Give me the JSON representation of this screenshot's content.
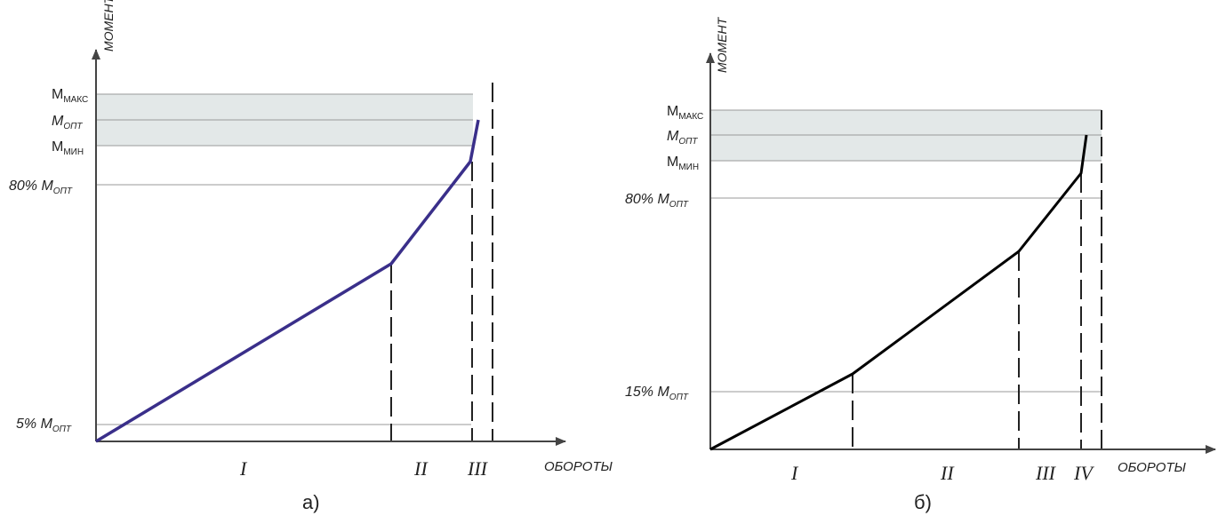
{
  "diagram_a": {
    "y_axis_label": "МОМЕНТ",
    "x_axis_label": "ОБОРОТЫ",
    "caption": "а)",
    "y_labels": {
      "mmax_main": "M",
      "mmax_sub": "МАКС",
      "mopt_main": "M",
      "mopt_sub": "ОПТ",
      "mmin_main": "M",
      "mmin_sub": "МИН",
      "p80_main": "80% M",
      "p80_sub": "ОПТ",
      "p5_main": "5% M",
      "p5_sub": "ОПТ"
    },
    "zones": [
      "I",
      "II",
      "III"
    ],
    "curve_color": "#3a2f8a"
  },
  "diagram_b": {
    "y_axis_label": "МОМЕНТ",
    "x_axis_label": "ОБОРОТЫ",
    "caption": "б)",
    "y_labels": {
      "mmax_main": "M",
      "mmax_sub": "МАКС",
      "mopt_main": "M",
      "mopt_sub": "ОПТ",
      "mmin_main": "M",
      "mmin_sub": "МИН",
      "p80_main": "80% M",
      "p80_sub": "ОПТ",
      "p15_main": "15% M",
      "p15_sub": "ОПТ"
    },
    "zones": [
      "I",
      "II",
      "III",
      "IV"
    ],
    "curve_color": "#000000"
  },
  "colors": {
    "band": "#e3e8e8",
    "axis": "#444444",
    "grid": "#9a9a9a"
  }
}
